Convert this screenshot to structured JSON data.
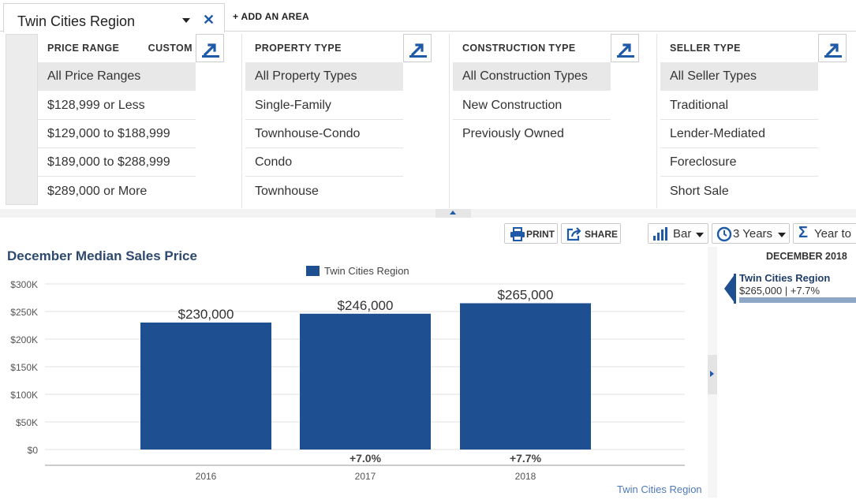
{
  "area_tab": {
    "name": "Twin Cities Region",
    "add_area": "+ ADD AN AREA"
  },
  "filters": {
    "price_range": {
      "title": "PRICE RANGE",
      "custom": "CUSTOM",
      "options": [
        "All Price Ranges",
        "$128,999 or Less",
        "$129,000 to $188,999",
        "$189,000 to $288,999",
        "$289,000 or More"
      ],
      "selected": 0
    },
    "property_type": {
      "title": "PROPERTY TYPE",
      "options": [
        "All Property Types",
        "Single-Family",
        "Townhouse-Condo",
        "Condo",
        "Townhouse"
      ],
      "selected": 0
    },
    "construction_type": {
      "title": "CONSTRUCTION TYPE",
      "options": [
        "All Construction Types",
        "New Construction",
        "Previously Owned"
      ],
      "selected": 0
    },
    "seller_type": {
      "title": "SELLER TYPE",
      "options": [
        "All Seller Types",
        "Traditional",
        "Lender-Mediated",
        "Foreclosure",
        "Short Sale"
      ],
      "selected": 0
    }
  },
  "toolbar": {
    "print": "PRINT",
    "share": "SHARE",
    "chart_type": "Bar",
    "range": "3 Years",
    "aggregation": "Year to"
  },
  "colors": {
    "bar": "#1e4f91",
    "accent": "#1e5aa8",
    "title": "#2d4a6e"
  },
  "chart_data": {
    "type": "bar",
    "title": "December Median Sales Price",
    "categories": [
      "2016",
      "2017",
      "2018"
    ],
    "series": [
      {
        "name": "Twin Cities Region",
        "values": [
          230000,
          246000,
          265000
        ]
      }
    ],
    "value_labels": [
      "$230,000",
      "$246,000",
      "$265,000"
    ],
    "change_labels": [
      "",
      "+7.0%",
      "+7.7%"
    ],
    "y_ticks": [
      0,
      50000,
      100000,
      150000,
      200000,
      250000,
      300000
    ],
    "y_tick_labels": [
      "$0",
      "$50K",
      "$100K",
      "$150K",
      "$200K",
      "$250K",
      "$300K"
    ],
    "ylim": [
      0,
      300000
    ],
    "legend_position": "top-center",
    "grid": true,
    "credit": "Twin Cities Region"
  },
  "side_panel": {
    "period": "DECEMBER 2018",
    "name": "Twin Cities Region",
    "value": "$265,000 | +7.7%"
  }
}
